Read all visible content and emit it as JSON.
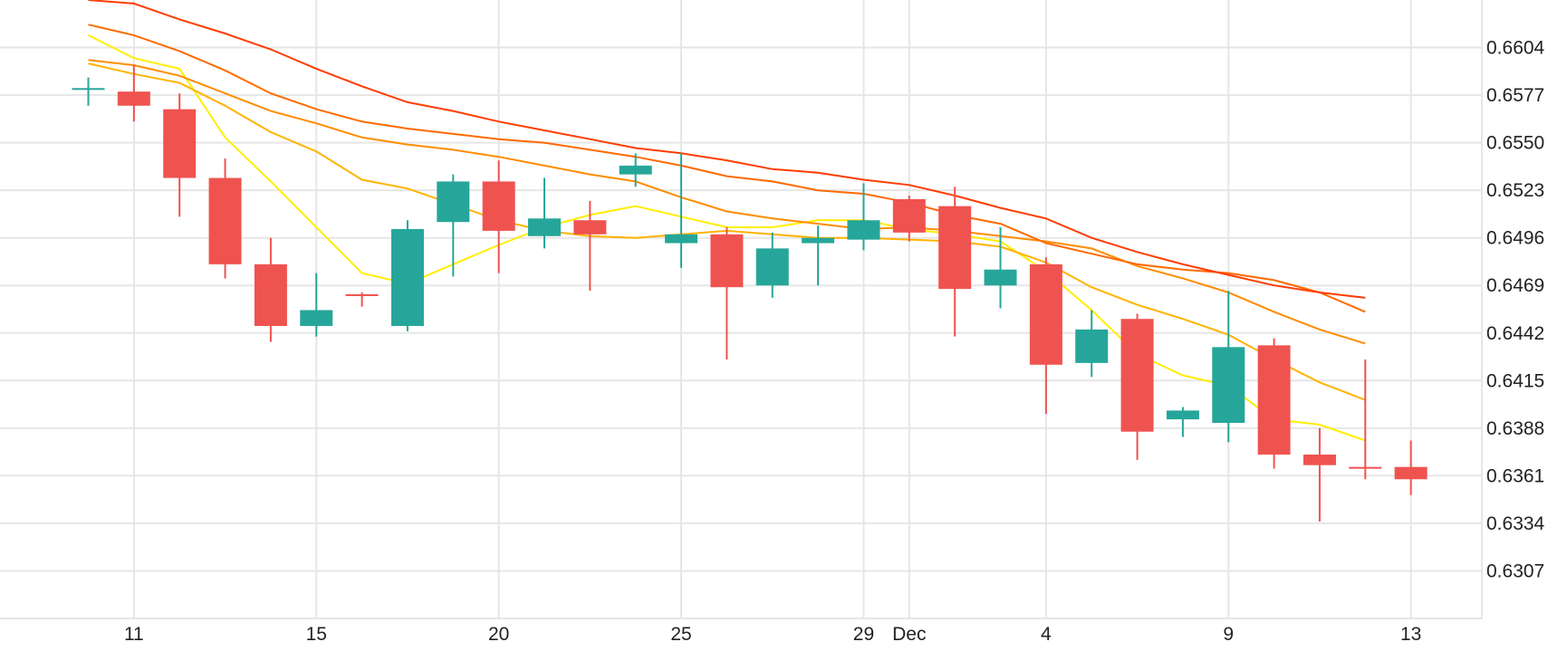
{
  "chart_data": {
    "type": "candlestick",
    "y_axis": {
      "range": [
        0.628,
        0.6631
      ],
      "ticks": [
        "0.6604",
        "0.6577",
        "0.6550",
        "0.6523",
        "0.6496",
        "0.6469",
        "0.6442",
        "0.6415",
        "0.6388",
        "0.6361",
        "0.6334",
        "0.6307"
      ],
      "position": "right"
    },
    "x_axis": {
      "tick_labels": [
        {
          "index": 1,
          "label": "11"
        },
        {
          "index": 5,
          "label": "15"
        },
        {
          "index": 9,
          "label": "20"
        },
        {
          "index": 13,
          "label": "25"
        },
        {
          "index": 17,
          "label": "29"
        },
        {
          "index": 18,
          "label": "Dec"
        },
        {
          "index": 21,
          "label": "4"
        },
        {
          "index": 25,
          "label": "9"
        },
        {
          "index": 29,
          "label": "13"
        }
      ]
    },
    "grid": true,
    "colors": {
      "up": "#26a69a",
      "down": "#ef5350"
    },
    "candles": [
      {
        "o": 0.658,
        "h": 0.6587,
        "l": 0.6571,
        "c": 0.6581
      },
      {
        "o": 0.6579,
        "h": 0.6594,
        "l": 0.6562,
        "c": 0.6571
      },
      {
        "o": 0.6569,
        "h": 0.6578,
        "l": 0.6508,
        "c": 0.653
      },
      {
        "o": 0.653,
        "h": 0.6541,
        "l": 0.6473,
        "c": 0.6481
      },
      {
        "o": 0.6481,
        "h": 0.6496,
        "l": 0.6437,
        "c": 0.6446
      },
      {
        "o": 0.6446,
        "h": 0.6476,
        "l": 0.644,
        "c": 0.6455
      },
      {
        "o": 0.6464,
        "h": 0.6465,
        "l": 0.6457,
        "c": 0.6463
      },
      {
        "o": 0.6446,
        "h": 0.6506,
        "l": 0.6443,
        "c": 0.6501
      },
      {
        "o": 0.6505,
        "h": 0.6532,
        "l": 0.6474,
        "c": 0.6528
      },
      {
        "o": 0.6528,
        "h": 0.654,
        "l": 0.6476,
        "c": 0.65
      },
      {
        "o": 0.6497,
        "h": 0.653,
        "l": 0.649,
        "c": 0.6507
      },
      {
        "o": 0.6506,
        "h": 0.6517,
        "l": 0.6466,
        "c": 0.6498
      },
      {
        "o": 0.6532,
        "h": 0.6544,
        "l": 0.6525,
        "c": 0.6537
      },
      {
        "o": 0.6493,
        "h": 0.6544,
        "l": 0.6479,
        "c": 0.6498
      },
      {
        "o": 0.6498,
        "h": 0.6502,
        "l": 0.6427,
        "c": 0.6468
      },
      {
        "o": 0.6469,
        "h": 0.6499,
        "l": 0.6462,
        "c": 0.649
      },
      {
        "o": 0.6493,
        "h": 0.6503,
        "l": 0.6469,
        "c": 0.6496
      },
      {
        "o": 0.6495,
        "h": 0.6527,
        "l": 0.6489,
        "c": 0.6506
      },
      {
        "o": 0.6518,
        "h": 0.652,
        "l": 0.6494,
        "c": 0.6499
      },
      {
        "o": 0.6514,
        "h": 0.6525,
        "l": 0.644,
        "c": 0.6467
      },
      {
        "o": 0.6469,
        "h": 0.6502,
        "l": 0.6456,
        "c": 0.6478
      },
      {
        "o": 0.6481,
        "h": 0.6485,
        "l": 0.6396,
        "c": 0.6424
      },
      {
        "o": 0.6425,
        "h": 0.6455,
        "l": 0.6417,
        "c": 0.6444
      },
      {
        "o": 0.645,
        "h": 0.6453,
        "l": 0.637,
        "c": 0.6386
      },
      {
        "o": 0.6393,
        "h": 0.64,
        "l": 0.6383,
        "c": 0.6398
      },
      {
        "o": 0.6391,
        "h": 0.6466,
        "l": 0.638,
        "c": 0.6434
      },
      {
        "o": 0.6435,
        "h": 0.6439,
        "l": 0.6365,
        "c": 0.6373
      },
      {
        "o": 0.6373,
        "h": 0.6388,
        "l": 0.6335,
        "c": 0.6367
      },
      {
        "o": 0.6366,
        "h": 0.6427,
        "l": 0.6359,
        "c": 0.6365
      },
      {
        "o": 0.6366,
        "h": 0.6381,
        "l": 0.635,
        "c": 0.6359
      }
    ],
    "moving_averages": [
      {
        "color": "#ffee00",
        "values": [
          0.6611,
          0.6598,
          0.6592,
          0.6553,
          0.6528,
          0.6502,
          0.6476,
          0.647,
          0.6481,
          0.6492,
          0.6502,
          0.6509,
          0.6514,
          0.6508,
          0.6502,
          0.6502,
          0.6506,
          0.6506,
          0.6501,
          0.6498,
          0.6494,
          0.6477,
          0.6455,
          0.643,
          0.6418,
          0.6412,
          0.6393,
          0.639,
          0.6381,
          null
        ]
      },
      {
        "color": "#ffb300",
        "values": [
          0.6595,
          0.6589,
          0.6584,
          0.6571,
          0.6556,
          0.6545,
          0.6529,
          0.6524,
          0.6515,
          0.6506,
          0.65,
          0.6497,
          0.6496,
          0.6498,
          0.65,
          0.6498,
          0.6496,
          0.6496,
          0.6495,
          0.6494,
          0.6491,
          0.6482,
          0.6468,
          0.6458,
          0.645,
          0.6441,
          0.6427,
          0.6414,
          0.6404,
          null
        ]
      },
      {
        "color": "#ff8c00",
        "values": [
          0.6597,
          0.6594,
          0.6588,
          0.6578,
          0.6568,
          0.6561,
          0.6553,
          0.6549,
          0.6546,
          0.6542,
          0.6537,
          0.6532,
          0.6528,
          0.6519,
          0.6511,
          0.6507,
          0.6504,
          0.6501,
          0.6502,
          0.65,
          0.6497,
          0.6494,
          0.649,
          0.648,
          0.6473,
          0.6465,
          0.6454,
          0.6444,
          0.6436,
          null
        ]
      },
      {
        "color": "#ff6a00",
        "values": [
          0.6617,
          0.6611,
          0.6602,
          0.6591,
          0.6578,
          0.6569,
          0.6562,
          0.6558,
          0.6555,
          0.6552,
          0.655,
          0.6546,
          0.6542,
          0.6537,
          0.6531,
          0.6528,
          0.6523,
          0.6521,
          0.6516,
          0.6509,
          0.6504,
          0.6493,
          0.6487,
          0.6481,
          0.6478,
          0.6476,
          0.6472,
          0.6465,
          0.6454,
          null
        ]
      },
      {
        "color": "#ff3d00",
        "values": [
          0.6631,
          0.6629,
          0.662,
          0.6612,
          0.6603,
          0.6592,
          0.6582,
          0.6573,
          0.6568,
          0.6562,
          0.6557,
          0.6552,
          0.6547,
          0.6544,
          0.654,
          0.6535,
          0.6533,
          0.6529,
          0.6526,
          0.652,
          0.6513,
          0.6507,
          0.6496,
          0.6488,
          0.6481,
          0.6475,
          0.6469,
          0.6465,
          0.6462,
          null
        ]
      }
    ]
  }
}
